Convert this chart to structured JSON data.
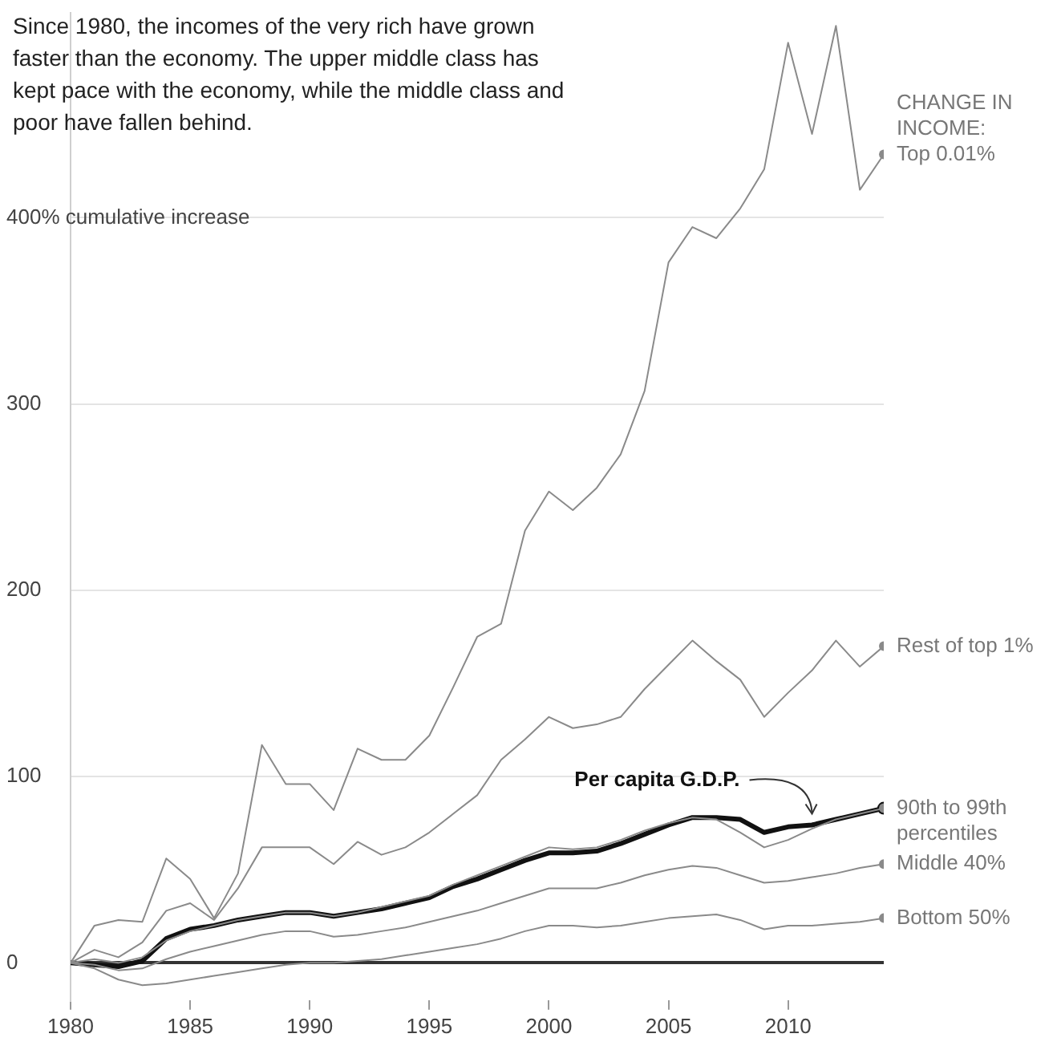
{
  "chart_data": {
    "type": "line",
    "title": "Since 1980, the incomes of the very rich have grown faster than the economy. The upper middle class has kept pace with the economy, while the middle class and poor have fallen behind.",
    "legend_title": "CHANGE IN INCOME:",
    "x": [
      1980,
      1981,
      1982,
      1983,
      1984,
      1985,
      1986,
      1987,
      1988,
      1989,
      1990,
      1991,
      1992,
      1993,
      1994,
      1995,
      1996,
      1997,
      1998,
      1999,
      2000,
      2001,
      2002,
      2003,
      2004,
      2005,
      2006,
      2007,
      2008,
      2009,
      2010,
      2011,
      2012,
      2013,
      2014
    ],
    "series": [
      {
        "name": "Top 0.01%",
        "color": "#8a8a8a",
        "values": [
          0,
          20,
          23,
          22,
          56,
          45,
          24,
          48,
          117,
          96,
          96,
          82,
          115,
          109,
          109,
          122,
          148,
          175,
          182,
          232,
          253,
          243,
          255,
          273,
          307,
          376,
          395,
          389,
          405,
          426,
          494,
          445,
          503,
          415,
          434
        ]
      },
      {
        "name": "Rest of top 1%",
        "color": "#8a8a8a",
        "values": [
          0,
          7,
          3,
          11,
          28,
          32,
          23,
          40,
          62,
          62,
          62,
          53,
          65,
          58,
          62,
          70,
          80,
          90,
          109,
          120,
          132,
          126,
          128,
          132,
          147,
          160,
          173,
          162,
          152,
          132,
          145,
          157,
          173,
          159,
          170
        ]
      },
      {
        "name": "90th to 99th percentiles",
        "color": "#8a8a8a",
        "values": [
          0,
          2,
          0,
          3,
          12,
          17,
          20,
          23,
          25,
          27,
          27,
          25,
          27,
          30,
          33,
          36,
          42,
          47,
          52,
          57,
          62,
          61,
          62,
          66,
          71,
          75,
          78,
          77,
          70,
          62,
          66,
          72,
          77,
          80,
          83
        ]
      },
      {
        "name": "Middle 40%",
        "color": "#8a8a8a",
        "values": [
          0,
          -1,
          -4,
          -3,
          2,
          6,
          9,
          12,
          15,
          17,
          17,
          14,
          15,
          17,
          19,
          22,
          25,
          28,
          32,
          36,
          40,
          40,
          40,
          43,
          47,
          50,
          52,
          51,
          47,
          43,
          44,
          46,
          48,
          51,
          53
        ]
      },
      {
        "name": "Bottom 50%",
        "color": "#8a8a8a",
        "values": [
          0,
          -3,
          -9,
          -12,
          -11,
          -9,
          -7,
          -5,
          -3,
          -1,
          0,
          0,
          1,
          2,
          4,
          6,
          8,
          10,
          13,
          17,
          20,
          20,
          19,
          20,
          22,
          24,
          25,
          26,
          23,
          18,
          20,
          20,
          21,
          22,
          24
        ]
      },
      {
        "color": "#111111",
        "values": [
          0,
          -1,
          -2,
          1,
          13,
          18,
          20,
          23,
          25,
          27,
          27,
          25,
          27,
          29,
          32,
          35,
          41,
          45,
          50,
          55,
          59,
          59,
          60,
          64,
          69,
          74,
          78,
          78,
          77,
          70,
          73,
          74,
          77,
          80,
          83
        ]
      }
    ],
    "annotations": [
      {
        "text": "Per capita G.D.P.",
        "x": 2011,
        "y": 74
      }
    ],
    "xlim": [
      1980,
      2014
    ],
    "xticks": [
      1980,
      1985,
      1990,
      1995,
      2000,
      2005,
      2010
    ],
    "ylim": [
      -20,
      510
    ],
    "yticks": [
      0,
      100,
      200,
      300,
      {
        "value": 400,
        "label": "400% cumulative increase"
      }
    ],
    "grid": "y",
    "line_style": "solid"
  }
}
